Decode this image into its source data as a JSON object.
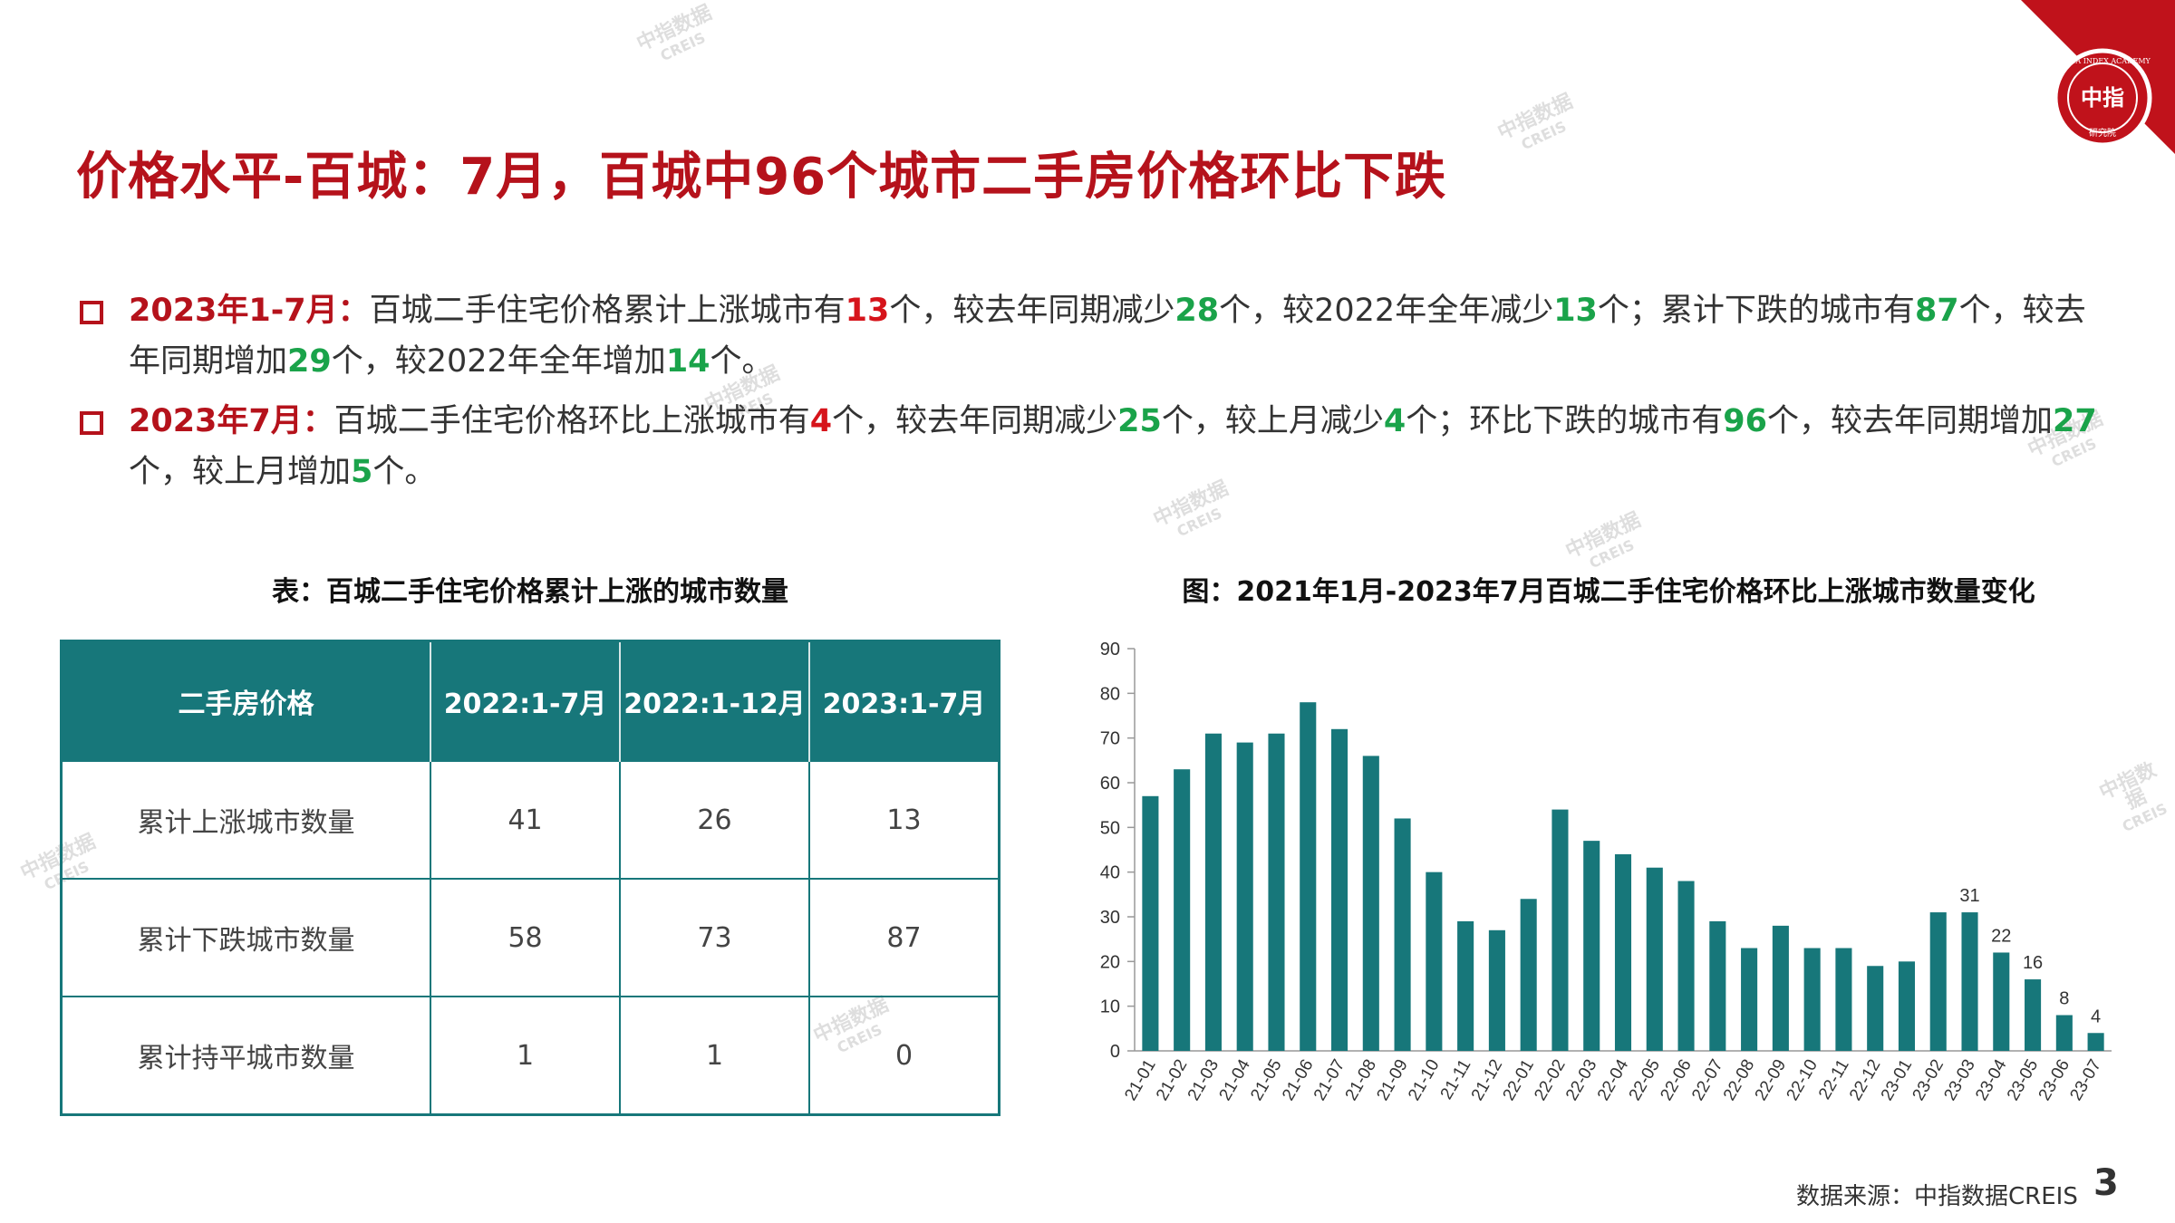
{
  "title": "价格水平-百城：7月，百城中96个城市二手房价格环比下跌",
  "logo": {
    "ring_text": "CHINA INDEX ACADEMY",
    "center_text": "中指",
    "bottom_text": "研究院",
    "colors": {
      "band": "#c0121b",
      "ring": "#ffffff"
    }
  },
  "watermark": {
    "cn": "中指数据",
    "en": "CREIS"
  },
  "bullets": [
    {
      "lead": "2023年1-7月：",
      "parts": [
        {
          "t": "百城二手住宅价格累计上涨城市有",
          "c": ""
        },
        {
          "t": "13",
          "c": "r"
        },
        {
          "t": "个，较去年同期减少",
          "c": ""
        },
        {
          "t": "28",
          "c": "g"
        },
        {
          "t": "个，较2022年全年减少",
          "c": ""
        },
        {
          "t": "13",
          "c": "g"
        },
        {
          "t": "个；累计下跌的城市有",
          "c": ""
        },
        {
          "t": "87",
          "c": "g"
        },
        {
          "t": "个，较去年同期增加",
          "c": ""
        },
        {
          "t": "29",
          "c": "g"
        },
        {
          "t": "个，较2022年全年增加",
          "c": ""
        },
        {
          "t": "14",
          "c": "g"
        },
        {
          "t": "个。",
          "c": ""
        }
      ]
    },
    {
      "lead": "2023年7月：",
      "parts": [
        {
          "t": "百城二手住宅价格环比上涨城市有",
          "c": ""
        },
        {
          "t": "4",
          "c": "r"
        },
        {
          "t": "个，较去年同期减少",
          "c": ""
        },
        {
          "t": "25",
          "c": "g"
        },
        {
          "t": "个，较上月减少",
          "c": ""
        },
        {
          "t": "4",
          "c": "g"
        },
        {
          "t": "个；环比下跌的城市有",
          "c": ""
        },
        {
          "t": "96",
          "c": "g"
        },
        {
          "t": "个，较去年同期增加",
          "c": ""
        },
        {
          "t": "27",
          "c": "g"
        },
        {
          "t": "个，较上月增加",
          "c": ""
        },
        {
          "t": "5",
          "c": "g"
        },
        {
          "t": "个。",
          "c": ""
        }
      ]
    }
  ],
  "table": {
    "caption": "表：百城二手住宅价格累计上涨的城市数量",
    "headers": [
      "二手房价格",
      "2022:1-7月",
      "2022:1-12月",
      "2023:1-7月"
    ],
    "rows": [
      [
        "累计上涨城市数量",
        "41",
        "26",
        "13"
      ],
      [
        "累计下跌城市数量",
        "58",
        "73",
        "87"
      ],
      [
        "累计持平城市数量",
        "1",
        "1",
        "0"
      ]
    ]
  },
  "chart_caption": "图：2021年1月-2023年7月百城二手住宅价格环比上涨城市数量变化",
  "chart_data": {
    "type": "bar",
    "title": "",
    "xlabel": "",
    "ylabel": "",
    "ylim": [
      0,
      90
    ],
    "yticks": [
      0,
      10,
      20,
      30,
      40,
      50,
      60,
      70,
      80,
      90
    ],
    "color": "#17777a",
    "categories": [
      "21-01",
      "21-02",
      "21-03",
      "21-04",
      "21-05",
      "21-06",
      "21-07",
      "21-08",
      "21-09",
      "21-10",
      "21-11",
      "21-12",
      "22-01",
      "22-02",
      "22-03",
      "22-04",
      "22-05",
      "22-06",
      "22-07",
      "22-08",
      "22-09",
      "22-10",
      "22-11",
      "22-12",
      "23-01",
      "23-02",
      "23-03",
      "23-04",
      "23-05",
      "23-06",
      "23-07"
    ],
    "values": [
      57,
      63,
      71,
      69,
      71,
      78,
      72,
      66,
      52,
      40,
      29,
      27,
      34,
      54,
      47,
      44,
      41,
      38,
      29,
      23,
      28,
      23,
      23,
      19,
      20,
      31,
      31,
      22,
      16,
      8,
      4
    ],
    "labels": {
      "26": "31",
      "27": "22",
      "28": "16",
      "29": "8",
      "30": "4"
    }
  },
  "source": "数据来源：中指数据CREIS",
  "page_number": "3"
}
